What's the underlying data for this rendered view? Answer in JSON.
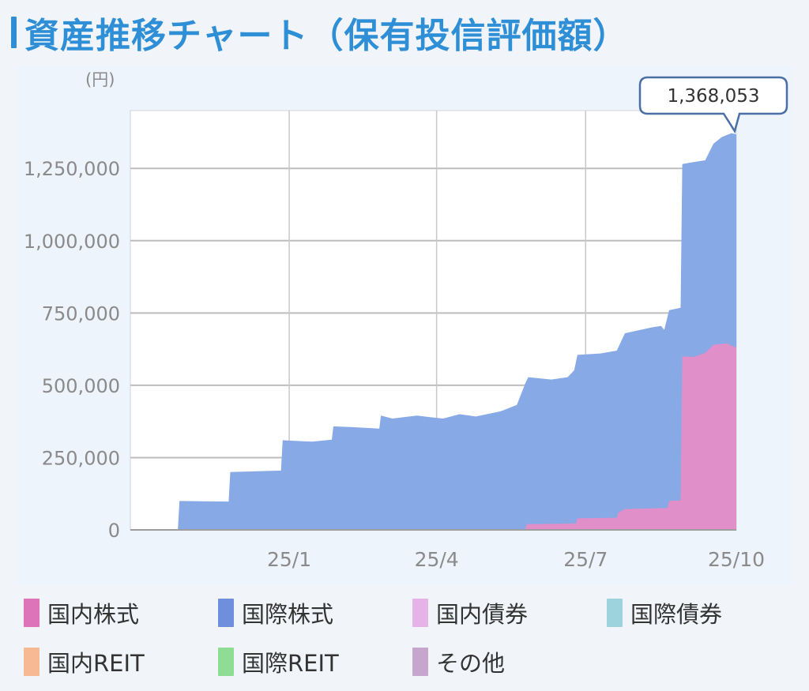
{
  "title": "資産推移チャート（保有投信評価額）",
  "chart_data": {
    "type": "area",
    "title": "資産推移チャート（保有投信評価額）",
    "unit_label": "(円)",
    "ylim": [
      0,
      1450000
    ],
    "y_ticks": [
      {
        "value": 0,
        "label": "0"
      },
      {
        "value": 250000,
        "label": "250,000"
      },
      {
        "value": 500000,
        "label": "500,000"
      },
      {
        "value": 750000,
        "label": "750,000"
      },
      {
        "value": 1000000,
        "label": "1,000,000"
      },
      {
        "value": 1250000,
        "label": "1,250,000"
      }
    ],
    "xlim": [
      "2024-09-26",
      "2025-10-01"
    ],
    "x_ticks": [
      {
        "date": "2025-01-01",
        "label": "25/1"
      },
      {
        "date": "2025-04-01",
        "label": "25/4"
      },
      {
        "date": "2025-07-01",
        "label": "25/7"
      },
      {
        "date": "2025-10-01",
        "label": "25/10"
      }
    ],
    "grid": true,
    "callout": {
      "date": "2025-10-01",
      "value": 1368053,
      "label": "1,368,053"
    },
    "series": [
      {
        "name": "国内株式",
        "color": "#e08fc9",
        "points": [
          [
            "2024-09-26",
            0
          ],
          [
            "2025-05-25",
            0
          ],
          [
            "2025-05-26",
            20000
          ],
          [
            "2025-06-25",
            22000
          ],
          [
            "2025-06-26",
            40000
          ],
          [
            "2025-07-20",
            42000
          ],
          [
            "2025-07-21",
            60000
          ],
          [
            "2025-07-25",
            72000
          ],
          [
            "2025-08-20",
            76000
          ],
          [
            "2025-08-21",
            100000
          ],
          [
            "2025-08-28",
            102000
          ],
          [
            "2025-08-29",
            600000
          ],
          [
            "2025-09-05",
            598000
          ],
          [
            "2025-09-12",
            612000
          ],
          [
            "2025-09-17",
            640000
          ],
          [
            "2025-09-25",
            645000
          ],
          [
            "2025-10-01",
            630000
          ]
        ]
      },
      {
        "name": "国際株式",
        "color": "#87a9e6",
        "points": [
          [
            "2024-09-26",
            0
          ],
          [
            "2024-10-25",
            0
          ],
          [
            "2024-10-26",
            100000
          ],
          [
            "2024-11-25",
            98000
          ],
          [
            "2024-11-26",
            200000
          ],
          [
            "2024-12-27",
            205000
          ],
          [
            "2024-12-28",
            310000
          ],
          [
            "2025-01-15",
            305000
          ],
          [
            "2025-01-27",
            312000
          ],
          [
            "2025-01-28",
            358000
          ],
          [
            "2025-02-10",
            355000
          ],
          [
            "2025-02-25",
            350000
          ],
          [
            "2025-02-26",
            395000
          ],
          [
            "2025-03-05",
            385000
          ],
          [
            "2025-03-20",
            395000
          ],
          [
            "2025-03-28",
            390000
          ],
          [
            "2025-04-05",
            385000
          ],
          [
            "2025-04-15",
            400000
          ],
          [
            "2025-04-25",
            392000
          ],
          [
            "2025-05-10",
            410000
          ],
          [
            "2025-05-20",
            432000
          ],
          [
            "2025-05-25",
            505000
          ],
          [
            "2025-05-27",
            528000
          ],
          [
            "2025-06-10",
            520000
          ],
          [
            "2025-06-20",
            528000
          ],
          [
            "2025-06-24",
            552000
          ],
          [
            "2025-06-26",
            605000
          ],
          [
            "2025-07-10",
            610000
          ],
          [
            "2025-07-20",
            620000
          ],
          [
            "2025-07-25",
            680000
          ],
          [
            "2025-08-10",
            700000
          ],
          [
            "2025-08-16",
            705000
          ],
          [
            "2025-08-18",
            692000
          ],
          [
            "2025-08-21",
            760000
          ],
          [
            "2025-08-28",
            768000
          ],
          [
            "2025-08-29",
            1265000
          ],
          [
            "2025-09-03",
            1270000
          ],
          [
            "2025-09-12",
            1278000
          ],
          [
            "2025-09-17",
            1335000
          ],
          [
            "2025-09-22",
            1358000
          ],
          [
            "2025-09-28",
            1372000
          ],
          [
            "2025-10-01",
            1368053
          ]
        ]
      }
    ]
  },
  "legend": [
    {
      "label": "国内株式",
      "color": "#dd73b8"
    },
    {
      "label": "国際株式",
      "color": "#6f8fdc"
    },
    {
      "label": "国内債券",
      "color": "#e6b3e8"
    },
    {
      "label": "国際債券",
      "color": "#9dd3dc"
    },
    {
      "label": "国内REIT",
      "color": "#f7b994"
    },
    {
      "label": "国際REIT",
      "color": "#8fdd95"
    },
    {
      "label": "その他",
      "color": "#c6a6cc"
    }
  ]
}
